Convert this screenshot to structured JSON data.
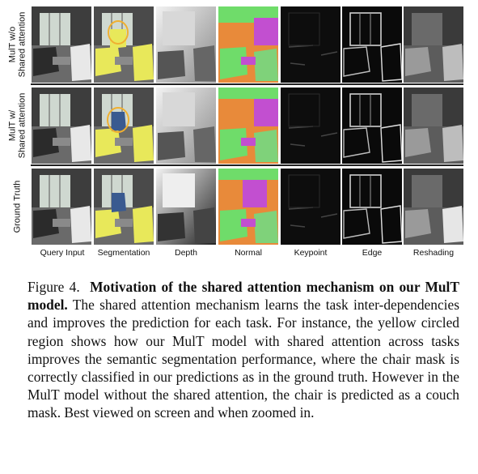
{
  "figure": {
    "row_labels": [
      "MulT w/o\nShared attention",
      "MulT w/\nShared attention",
      "Ground Truth"
    ],
    "column_labels": [
      "Query Input",
      "Segmentation",
      "Depth",
      "Normal",
      "Keypoint",
      "Edge",
      "Reshading"
    ]
  },
  "caption": {
    "label": "Figure 4.",
    "title": "Motivation of the shared attention mechanism on our MulT model.",
    "body": "The shared attention mechanism learns the task inter-dependencies and improves the prediction for each task. For instance, the yellow circled region shows how our MulT model with shared attention across tasks improves the semantic segmentation performance, where the chair mask is correctly classified in our predictions as in the ground truth. However in the MulT model without the shared attention, the chair is predicted as a couch mask. Best viewed on screen and when zoomed in."
  },
  "colors": {
    "segmentation_highlight": "#e8e85a",
    "circle": "#f0b030",
    "normal_green": "#6fdc6a",
    "normal_magenta": "#c24fd0",
    "normal_orange": "#e88a3a"
  }
}
